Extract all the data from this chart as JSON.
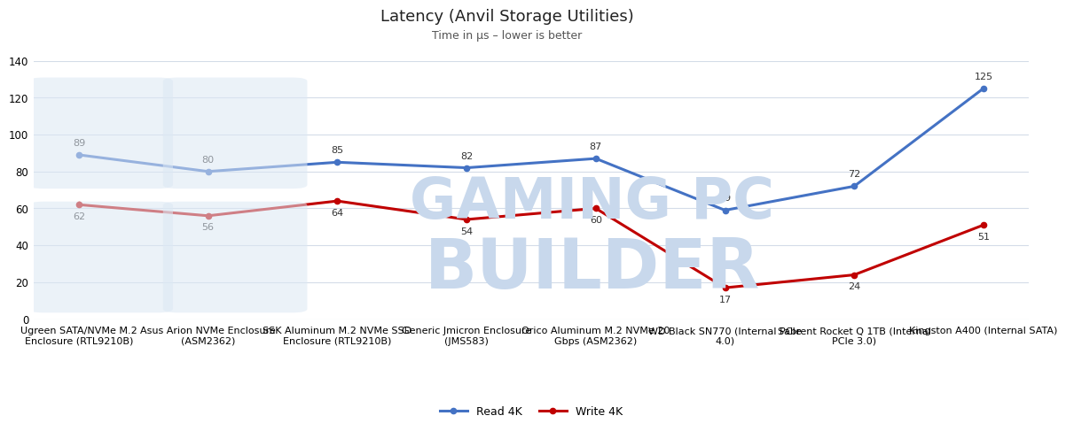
{
  "title": "Latency (Anvil Storage Utilities)",
  "subtitle": "Time in μs – lower is better",
  "categories": [
    "Ugreen SATA/NVMe M.2\nEnclosure (RTL9210B)",
    "Asus Arion NVMe Enclosure\n(ASM2362)",
    "SSK Aluminum M.2 NVMe SSD\nEnclosure (RTL9210B)",
    "Generic Jmicron Enclosure\n(JMS583)",
    "Orico Aluminum M.2 NVMe 20\nGbps (ASM2362)",
    "WD Black SN770 (Internal PCIe\n4.0)",
    "Sabrent Rocket Q 1TB (Internal\nPCIe 3.0)",
    "Kingston A400 (Internal SATA)"
  ],
  "read_4k": [
    89,
    80,
    85,
    82,
    87,
    59,
    72,
    125
  ],
  "write_4k": [
    62,
    56,
    64,
    54,
    60,
    17,
    24,
    51
  ],
  "read_color": "#4472c4",
  "write_color": "#c00000",
  "bg_color": "#ffffff",
  "grid_color": "#d4dce8",
  "ylim": [
    0,
    140
  ],
  "yticks": [
    0,
    20,
    40,
    60,
    80,
    100,
    120,
    140
  ],
  "watermark_text1": "GAMING PC",
  "watermark_text2": "BUILDER",
  "watermark_color": "#c8d8ec",
  "wm_box_color": "#dce8f4",
  "title_fontsize": 13,
  "subtitle_fontsize": 9,
  "tick_fontsize": 8.5,
  "label_fontsize": 8,
  "legend_fontsize": 9
}
